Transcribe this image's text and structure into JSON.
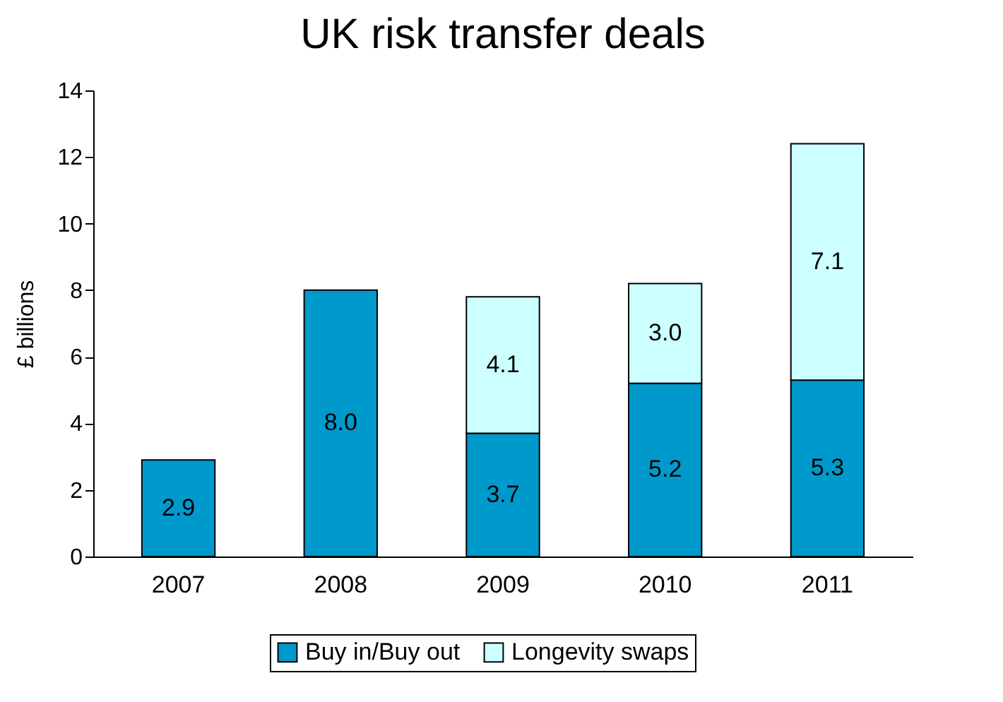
{
  "chart_data": {
    "type": "bar",
    "title": "UK risk transfer deals",
    "ylabel": "£ billions",
    "categories": [
      "2007",
      "2008",
      "2009",
      "2010",
      "2011"
    ],
    "series": [
      {
        "name": "Buy in/Buy out",
        "color": "#0099cc",
        "values": [
          2.9,
          8.0,
          3.7,
          5.2,
          5.3
        ],
        "value_labels": [
          "2.9",
          "8.0",
          "3.7",
          "5.2",
          "5.3"
        ]
      },
      {
        "name": "Longevity swaps",
        "color": "#ccffff",
        "values": [
          null,
          null,
          4.1,
          3.0,
          7.1
        ],
        "value_labels": [
          null,
          null,
          "4.1",
          "3.0",
          "7.1"
        ]
      }
    ],
    "stacked": true,
    "ylim": [
      0,
      14
    ],
    "yticks": [
      0,
      2,
      4,
      6,
      8,
      10,
      12,
      14
    ],
    "grid": false,
    "legend": "bottom"
  }
}
